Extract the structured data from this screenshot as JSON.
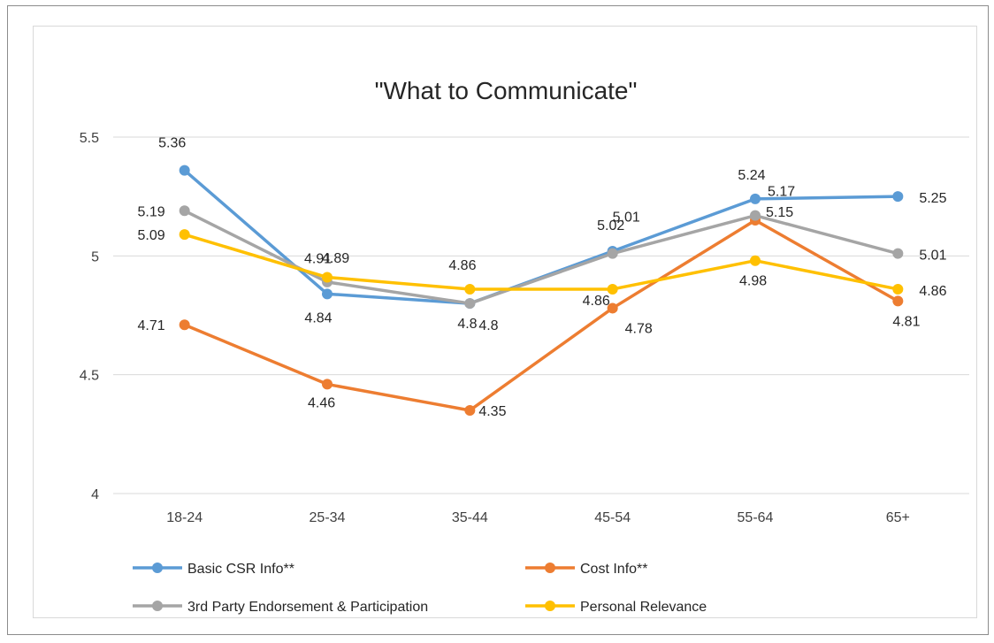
{
  "chart_data": {
    "type": "line",
    "title": "\"What to Communicate\"",
    "categories": [
      "18-24",
      "25-34",
      "35-44",
      "45-54",
      "55-64",
      "65+"
    ],
    "ylim": [
      4,
      5.5
    ],
    "yticks": [
      "4",
      "4.5",
      "5",
      "5.5"
    ],
    "grid": true,
    "legend_position": "bottom",
    "series": [
      {
        "name": "Basic CSR Info**",
        "color": "#5b9bd5",
        "values": [
          5.36,
          4.84,
          4.8,
          5.02,
          5.24,
          5.25
        ],
        "labels": [
          "5.36",
          "4.84",
          "4.8",
          "5.02",
          "5.24",
          "5.25"
        ]
      },
      {
        "name": "Cost Info**",
        "color": "#ed7d31",
        "values": [
          4.71,
          4.46,
          4.35,
          4.78,
          5.15,
          4.81
        ],
        "labels": [
          "4.71",
          "4.46",
          "4.35",
          "4.78",
          "5.15",
          "4.81"
        ]
      },
      {
        "name": "3rd Party Endorsement & Participation",
        "color": "#a5a5a5",
        "values": [
          5.19,
          4.89,
          4.8,
          5.01,
          5.17,
          5.01
        ],
        "labels": [
          "5.19",
          "4.89",
          "4.8",
          "5.01",
          "5.17",
          "5.01"
        ]
      },
      {
        "name": "Personal Relevance",
        "color": "#ffc000",
        "values": [
          5.09,
          4.91,
          4.86,
          4.86,
          4.98,
          4.86
        ],
        "labels": [
          "5.09",
          "4.91",
          "4.86",
          "4.86",
          "4.98",
          "4.86"
        ]
      }
    ]
  }
}
